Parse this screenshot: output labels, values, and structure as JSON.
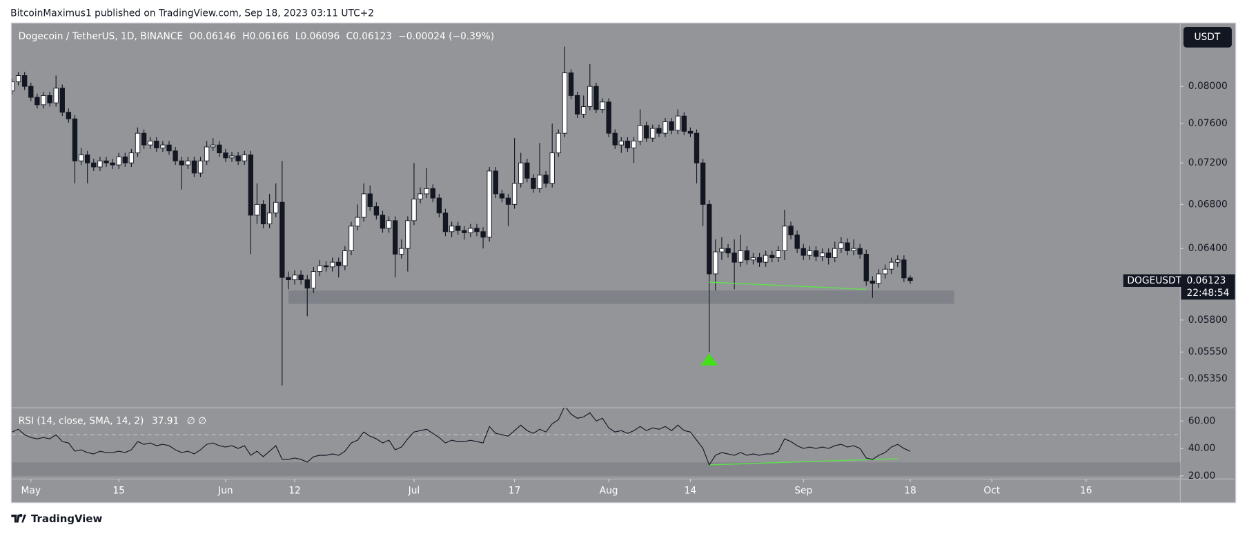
{
  "header": {
    "byline": "BitcoinMaximus1 published on TradingView.com, Sep 18, 2023 03:11 UTC+2",
    "currency_button": "USDT"
  },
  "footer": {
    "brand": "TradingView"
  },
  "chart_data": {
    "type": "candlestick",
    "title": "Dogecoin / TetherUS, 1D, BINANCE",
    "legend": {
      "o": "O",
      "h": "H",
      "l": "L",
      "c": "C",
      "change": "−0.00024 (−0.39%)"
    },
    "price_tag": {
      "symbol": "DOGEUSDT",
      "countdown": "22:48:54"
    },
    "log_scale": true,
    "grid": false,
    "up_color": "#ffffff",
    "down_color": "#131722",
    "x": [
      "04-28",
      "04-29",
      "04-30",
      "05-01",
      "05-02",
      "05-03",
      "05-04",
      "05-05",
      "05-06",
      "05-07",
      "05-08",
      "05-09",
      "05-10",
      "05-11",
      "05-12",
      "05-13",
      "05-14",
      "05-15",
      "05-16",
      "05-17",
      "05-18",
      "05-19",
      "05-20",
      "05-21",
      "05-22",
      "05-23",
      "05-24",
      "05-25",
      "05-26",
      "05-27",
      "05-28",
      "05-29",
      "05-30",
      "05-31",
      "06-01",
      "06-02",
      "06-03",
      "06-04",
      "06-05",
      "06-06",
      "06-07",
      "06-08",
      "06-09",
      "06-10",
      "06-11",
      "06-12",
      "06-13",
      "06-14",
      "06-15",
      "06-16",
      "06-17",
      "06-18",
      "06-19",
      "06-20",
      "06-21",
      "06-22",
      "06-23",
      "06-24",
      "06-25",
      "06-26",
      "06-27",
      "06-28",
      "06-29",
      "06-30",
      "07-01",
      "07-02",
      "07-03",
      "07-04",
      "07-05",
      "07-06",
      "07-07",
      "07-08",
      "07-09",
      "07-10",
      "07-11",
      "07-12",
      "07-13",
      "07-14",
      "07-15",
      "07-16",
      "07-17",
      "07-18",
      "07-19",
      "07-20",
      "07-21",
      "07-22",
      "07-23",
      "07-24",
      "07-25",
      "07-26",
      "07-27",
      "07-28",
      "07-29",
      "07-30",
      "07-31",
      "08-01",
      "08-02",
      "08-03",
      "08-04",
      "08-05",
      "08-06",
      "08-07",
      "08-08",
      "08-09",
      "08-10",
      "08-11",
      "08-12",
      "08-13",
      "08-14",
      "08-15",
      "08-16",
      "08-17",
      "08-18",
      "08-19",
      "08-20",
      "08-21",
      "08-22",
      "08-23",
      "08-24",
      "08-25",
      "08-26",
      "08-27",
      "08-28",
      "08-29",
      "08-30",
      "08-31",
      "09-01",
      "09-02",
      "09-03",
      "09-04",
      "09-05",
      "09-06",
      "09-07",
      "09-08",
      "09-09",
      "09-10",
      "09-11",
      "09-12",
      "09-13",
      "09-14",
      "09-15",
      "09-16",
      "09-17",
      "09-18"
    ],
    "open": [
      0.0795,
      0.0805,
      0.0812,
      0.08,
      0.0788,
      0.078,
      0.079,
      0.0782,
      0.0798,
      0.0772,
      0.0765,
      0.0722,
      0.0728,
      0.072,
      0.0716,
      0.0722,
      0.072,
      0.0718,
      0.0726,
      0.072,
      0.073,
      0.075,
      0.0738,
      0.0742,
      0.0735,
      0.0738,
      0.0732,
      0.0722,
      0.0718,
      0.0722,
      0.071,
      0.0722,
      0.0736,
      0.0738,
      0.073,
      0.0725,
      0.0727,
      0.0722,
      0.0728,
      0.067,
      0.068,
      0.0662,
      0.0672,
      0.0682,
      0.0615,
      0.0613,
      0.0617,
      0.0613,
      0.0606,
      0.062,
      0.0625,
      0.0624,
      0.0628,
      0.0625,
      0.0638,
      0.066,
      0.0668,
      0.069,
      0.0678,
      0.067,
      0.0658,
      0.0665,
      0.0635,
      0.064,
      0.0665,
      0.0685,
      0.069,
      0.0695,
      0.0686,
      0.0672,
      0.0655,
      0.066,
      0.0656,
      0.0654,
      0.0658,
      0.0655,
      0.065,
      0.0712,
      0.069,
      0.0686,
      0.068,
      0.07,
      0.072,
      0.0705,
      0.0695,
      0.0708,
      0.07,
      0.073,
      0.075,
      0.0815,
      0.079,
      0.077,
      0.0778,
      0.08,
      0.0775,
      0.0783,
      0.075,
      0.0738,
      0.0742,
      0.0735,
      0.0742,
      0.0758,
      0.0745,
      0.0755,
      0.075,
      0.0762,
      0.0753,
      0.0768,
      0.0752,
      0.075,
      0.072,
      0.068,
      0.0618,
      0.0637,
      0.064,
      0.0636,
      0.0628,
      0.0638,
      0.063,
      0.0632,
      0.0628,
      0.0634,
      0.0632,
      0.0638,
      0.066,
      0.0652,
      0.064,
      0.0634,
      0.0638,
      0.0633,
      0.0636,
      0.0632,
      0.064,
      0.0645,
      0.0638,
      0.064,
      0.0635,
      0.0612,
      0.061,
      0.0618,
      0.0622,
      0.0628,
      0.063,
      0.06146
    ],
    "high": [
      0.0809,
      0.0816,
      0.0816,
      0.0804,
      0.0792,
      0.0794,
      0.0794,
      0.0812,
      0.0802,
      0.0776,
      0.0769,
      0.0735,
      0.0732,
      0.0724,
      0.0726,
      0.0726,
      0.0724,
      0.073,
      0.073,
      0.0734,
      0.0756,
      0.0754,
      0.0746,
      0.0746,
      0.0742,
      0.0742,
      0.0736,
      0.0726,
      0.0726,
      0.0726,
      0.0726,
      0.0742,
      0.0745,
      0.0742,
      0.0734,
      0.0731,
      0.0731,
      0.0732,
      0.0732,
      0.07,
      0.0684,
      0.069,
      0.07,
      0.0722,
      0.062,
      0.0621,
      0.0621,
      0.0617,
      0.0624,
      0.063,
      0.0629,
      0.0632,
      0.0632,
      0.0642,
      0.0664,
      0.068,
      0.07,
      0.0698,
      0.0682,
      0.0674,
      0.0669,
      0.0669,
      0.0648,
      0.0669,
      0.072,
      0.0696,
      0.0715,
      0.0699,
      0.069,
      0.0676,
      0.0664,
      0.0664,
      0.066,
      0.0662,
      0.0662,
      0.0659,
      0.0716,
      0.0716,
      0.0694,
      0.069,
      0.0745,
      0.073,
      0.0724,
      0.0709,
      0.074,
      0.0712,
      0.076,
      0.0754,
      0.0845,
      0.0819,
      0.0794,
      0.079,
      0.0825,
      0.0804,
      0.0787,
      0.0787,
      0.0754,
      0.0746,
      0.0746,
      0.0746,
      0.0775,
      0.0762,
      0.0759,
      0.0759,
      0.0766,
      0.0766,
      0.0775,
      0.0772,
      0.0756,
      0.0754,
      0.0724,
      0.0684,
      0.0648,
      0.065,
      0.0644,
      0.0648,
      0.0652,
      0.0642,
      0.0636,
      0.0636,
      0.0638,
      0.0638,
      0.0642,
      0.0675,
      0.0664,
      0.0656,
      0.0644,
      0.0642,
      0.0642,
      0.064,
      0.064,
      0.0646,
      0.065,
      0.0649,
      0.0648,
      0.0644,
      0.0639,
      0.0616,
      0.0622,
      0.0626,
      0.0632,
      0.0634,
      0.0634,
      0.06166
    ],
    "low": [
      0.0791,
      0.0801,
      0.0796,
      0.0784,
      0.0776,
      0.0776,
      0.0778,
      0.0778,
      0.0768,
      0.0761,
      0.07,
      0.0718,
      0.07,
      0.0712,
      0.0712,
      0.0716,
      0.0714,
      0.0714,
      0.0716,
      0.0716,
      0.0726,
      0.0734,
      0.0734,
      0.0731,
      0.0731,
      0.0728,
      0.0718,
      0.0694,
      0.0714,
      0.0706,
      0.0706,
      0.0718,
      0.0732,
      0.0726,
      0.0721,
      0.0721,
      0.0718,
      0.0718,
      0.0635,
      0.0662,
      0.0658,
      0.0658,
      0.0668,
      0.053,
      0.0605,
      0.0609,
      0.0609,
      0.0583,
      0.0602,
      0.0616,
      0.062,
      0.062,
      0.0615,
      0.0621,
      0.0634,
      0.0656,
      0.0664,
      0.0674,
      0.0666,
      0.0654,
      0.0654,
      0.0615,
      0.0631,
      0.062,
      0.0661,
      0.0681,
      0.0686,
      0.0682,
      0.0668,
      0.0651,
      0.065,
      0.0652,
      0.0648,
      0.065,
      0.0651,
      0.064,
      0.0646,
      0.0686,
      0.0682,
      0.066,
      0.0676,
      0.0696,
      0.0701,
      0.0691,
      0.0691,
      0.0696,
      0.0696,
      0.0726,
      0.0746,
      0.0786,
      0.0766,
      0.0766,
      0.0774,
      0.0771,
      0.0771,
      0.0746,
      0.0734,
      0.073,
      0.0731,
      0.072,
      0.0738,
      0.0741,
      0.0741,
      0.0746,
      0.0746,
      0.0749,
      0.0749,
      0.0748,
      0.0746,
      0.07,
      0.066,
      0.0555,
      0.0604,
      0.063,
      0.0632,
      0.0605,
      0.0624,
      0.0626,
      0.0626,
      0.0624,
      0.0624,
      0.0628,
      0.0628,
      0.063,
      0.0648,
      0.0636,
      0.063,
      0.063,
      0.0629,
      0.0629,
      0.0626,
      0.0628,
      0.0636,
      0.0634,
      0.0634,
      0.0631,
      0.0608,
      0.0598,
      0.0606,
      0.0614,
      0.0618,
      0.0624,
      0.0611,
      0.06096
    ],
    "close": [
      0.0805,
      0.0812,
      0.08,
      0.0788,
      0.078,
      0.079,
      0.0782,
      0.0798,
      0.0772,
      0.0765,
      0.0722,
      0.0728,
      0.072,
      0.0716,
      0.0722,
      0.072,
      0.0718,
      0.0726,
      0.072,
      0.073,
      0.075,
      0.0738,
      0.0742,
      0.0735,
      0.0738,
      0.0732,
      0.0722,
      0.0718,
      0.0722,
      0.071,
      0.0722,
      0.0736,
      0.0738,
      0.073,
      0.0725,
      0.0727,
      0.0722,
      0.0728,
      0.067,
      0.068,
      0.0662,
      0.0672,
      0.0682,
      0.0615,
      0.0613,
      0.0617,
      0.0613,
      0.0606,
      0.062,
      0.0625,
      0.0624,
      0.0628,
      0.0625,
      0.0638,
      0.066,
      0.0668,
      0.069,
      0.0678,
      0.067,
      0.0658,
      0.0665,
      0.0635,
      0.064,
      0.0665,
      0.0685,
      0.069,
      0.0695,
      0.0686,
      0.0672,
      0.0655,
      0.066,
      0.0656,
      0.0654,
      0.0658,
      0.0655,
      0.065,
      0.0712,
      0.069,
      0.0686,
      0.068,
      0.07,
      0.072,
      0.0705,
      0.0695,
      0.0708,
      0.07,
      0.073,
      0.075,
      0.0815,
      0.079,
      0.077,
      0.0778,
      0.08,
      0.0775,
      0.0783,
      0.075,
      0.0738,
      0.0742,
      0.0735,
      0.0742,
      0.0758,
      0.0745,
      0.0755,
      0.075,
      0.0762,
      0.0753,
      0.0768,
      0.0752,
      0.075,
      0.072,
      0.068,
      0.0618,
      0.0637,
      0.064,
      0.0636,
      0.0628,
      0.0638,
      0.063,
      0.0632,
      0.0628,
      0.0634,
      0.0632,
      0.0638,
      0.066,
      0.0652,
      0.064,
      0.0634,
      0.0638,
      0.0633,
      0.0636,
      0.0632,
      0.064,
      0.0645,
      0.0638,
      0.064,
      0.0635,
      0.0612,
      0.061,
      0.0618,
      0.0622,
      0.0628,
      0.063,
      0.06146,
      0.06123
    ],
    "xlim": [
      "04-28",
      "10-31"
    ],
    "xticks": [
      {
        "value": "05-01",
        "label": "May"
      },
      {
        "value": "05-15",
        "label": "15"
      },
      {
        "value": "06-01",
        "label": "Jun"
      },
      {
        "value": "06-12",
        "label": "12"
      },
      {
        "value": "07-01",
        "label": "Jul"
      },
      {
        "value": "07-17",
        "label": "17"
      },
      {
        "value": "08-01",
        "label": "Aug"
      },
      {
        "value": "08-14",
        "label": "14"
      },
      {
        "value": "09-01",
        "label": "Sep"
      },
      {
        "value": "09-18",
        "label": "18"
      },
      {
        "value": "10-01",
        "label": "Oct"
      },
      {
        "value": "10-16",
        "label": "16"
      }
    ],
    "ylim": [
      0.0514,
      0.0872
    ],
    "yticks": [
      {
        "value": 0.08,
        "label": "0.08000"
      },
      {
        "value": 0.076,
        "label": "0.07600"
      },
      {
        "value": 0.072,
        "label": "0.07200"
      },
      {
        "value": 0.068,
        "label": "0.06800"
      },
      {
        "value": 0.064,
        "label": "0.06400"
      },
      {
        "value": 0.058,
        "label": "0.05800"
      },
      {
        "value": 0.0555,
        "label": "0.05550"
      },
      {
        "value": 0.0535,
        "label": "0.05350"
      }
    ],
    "support_zone": {
      "x": [
        "06-11",
        "09-25"
      ],
      "y": [
        0.0593,
        0.0604
      ],
      "color": "#7d7f86"
    },
    "trendlines": [
      {
        "pane": "price",
        "x": [
          "08-17",
          "09-11"
        ],
        "y": [
          0.0611,
          0.0605
        ],
        "color": "#5ee34a"
      },
      {
        "pane": "rsi",
        "x": [
          "08-17",
          "09-16"
        ],
        "y": [
          28,
          32.6
        ],
        "color": "#5ee34a"
      }
    ],
    "marker": {
      "x": "08-17",
      "y": 0.0549,
      "color": "#43e01a"
    },
    "rsi": {
      "label": "RSI (14, close, SMA, 14, 2)",
      "extra": "∅  ∅",
      "color": "#131722",
      "ylim": [
        17.7,
        69.7
      ],
      "yticks": [
        {
          "value": 60,
          "label": "60.00"
        },
        {
          "value": 40,
          "label": "40.00"
        },
        {
          "value": 20,
          "label": "20.00"
        }
      ],
      "values": [
        52,
        54,
        50,
        48,
        47,
        48,
        47,
        50,
        45,
        44,
        38,
        39,
        37,
        36,
        38,
        37,
        37,
        38,
        37,
        39,
        45,
        43,
        44,
        42,
        43,
        42,
        39,
        37,
        38,
        36,
        39,
        43,
        44,
        42,
        41,
        42,
        40,
        42,
        35,
        38,
        34,
        38,
        42,
        32,
        32,
        33,
        32,
        30,
        34,
        35,
        35,
        36,
        35,
        38,
        44,
        46,
        52,
        49,
        47,
        44,
        46,
        39,
        41,
        47,
        52,
        53,
        54,
        51,
        48,
        44,
        46,
        45,
        45,
        46,
        45,
        44,
        56,
        51,
        50,
        49,
        53,
        57,
        53,
        51,
        54,
        52,
        58,
        61,
        71,
        65,
        62,
        63,
        66,
        60,
        62,
        55,
        52,
        53,
        51,
        53,
        56,
        53,
        55,
        54,
        56,
        53,
        57,
        53,
        52,
        46,
        40,
        28,
        35,
        37,
        36,
        35,
        37,
        35,
        36,
        35,
        36,
        36,
        38,
        47,
        45,
        42,
        40,
        41,
        40,
        41,
        40,
        42,
        43,
        41,
        42,
        40,
        33,
        32,
        35,
        37,
        41,
        43,
        40,
        37.91
      ]
    }
  }
}
